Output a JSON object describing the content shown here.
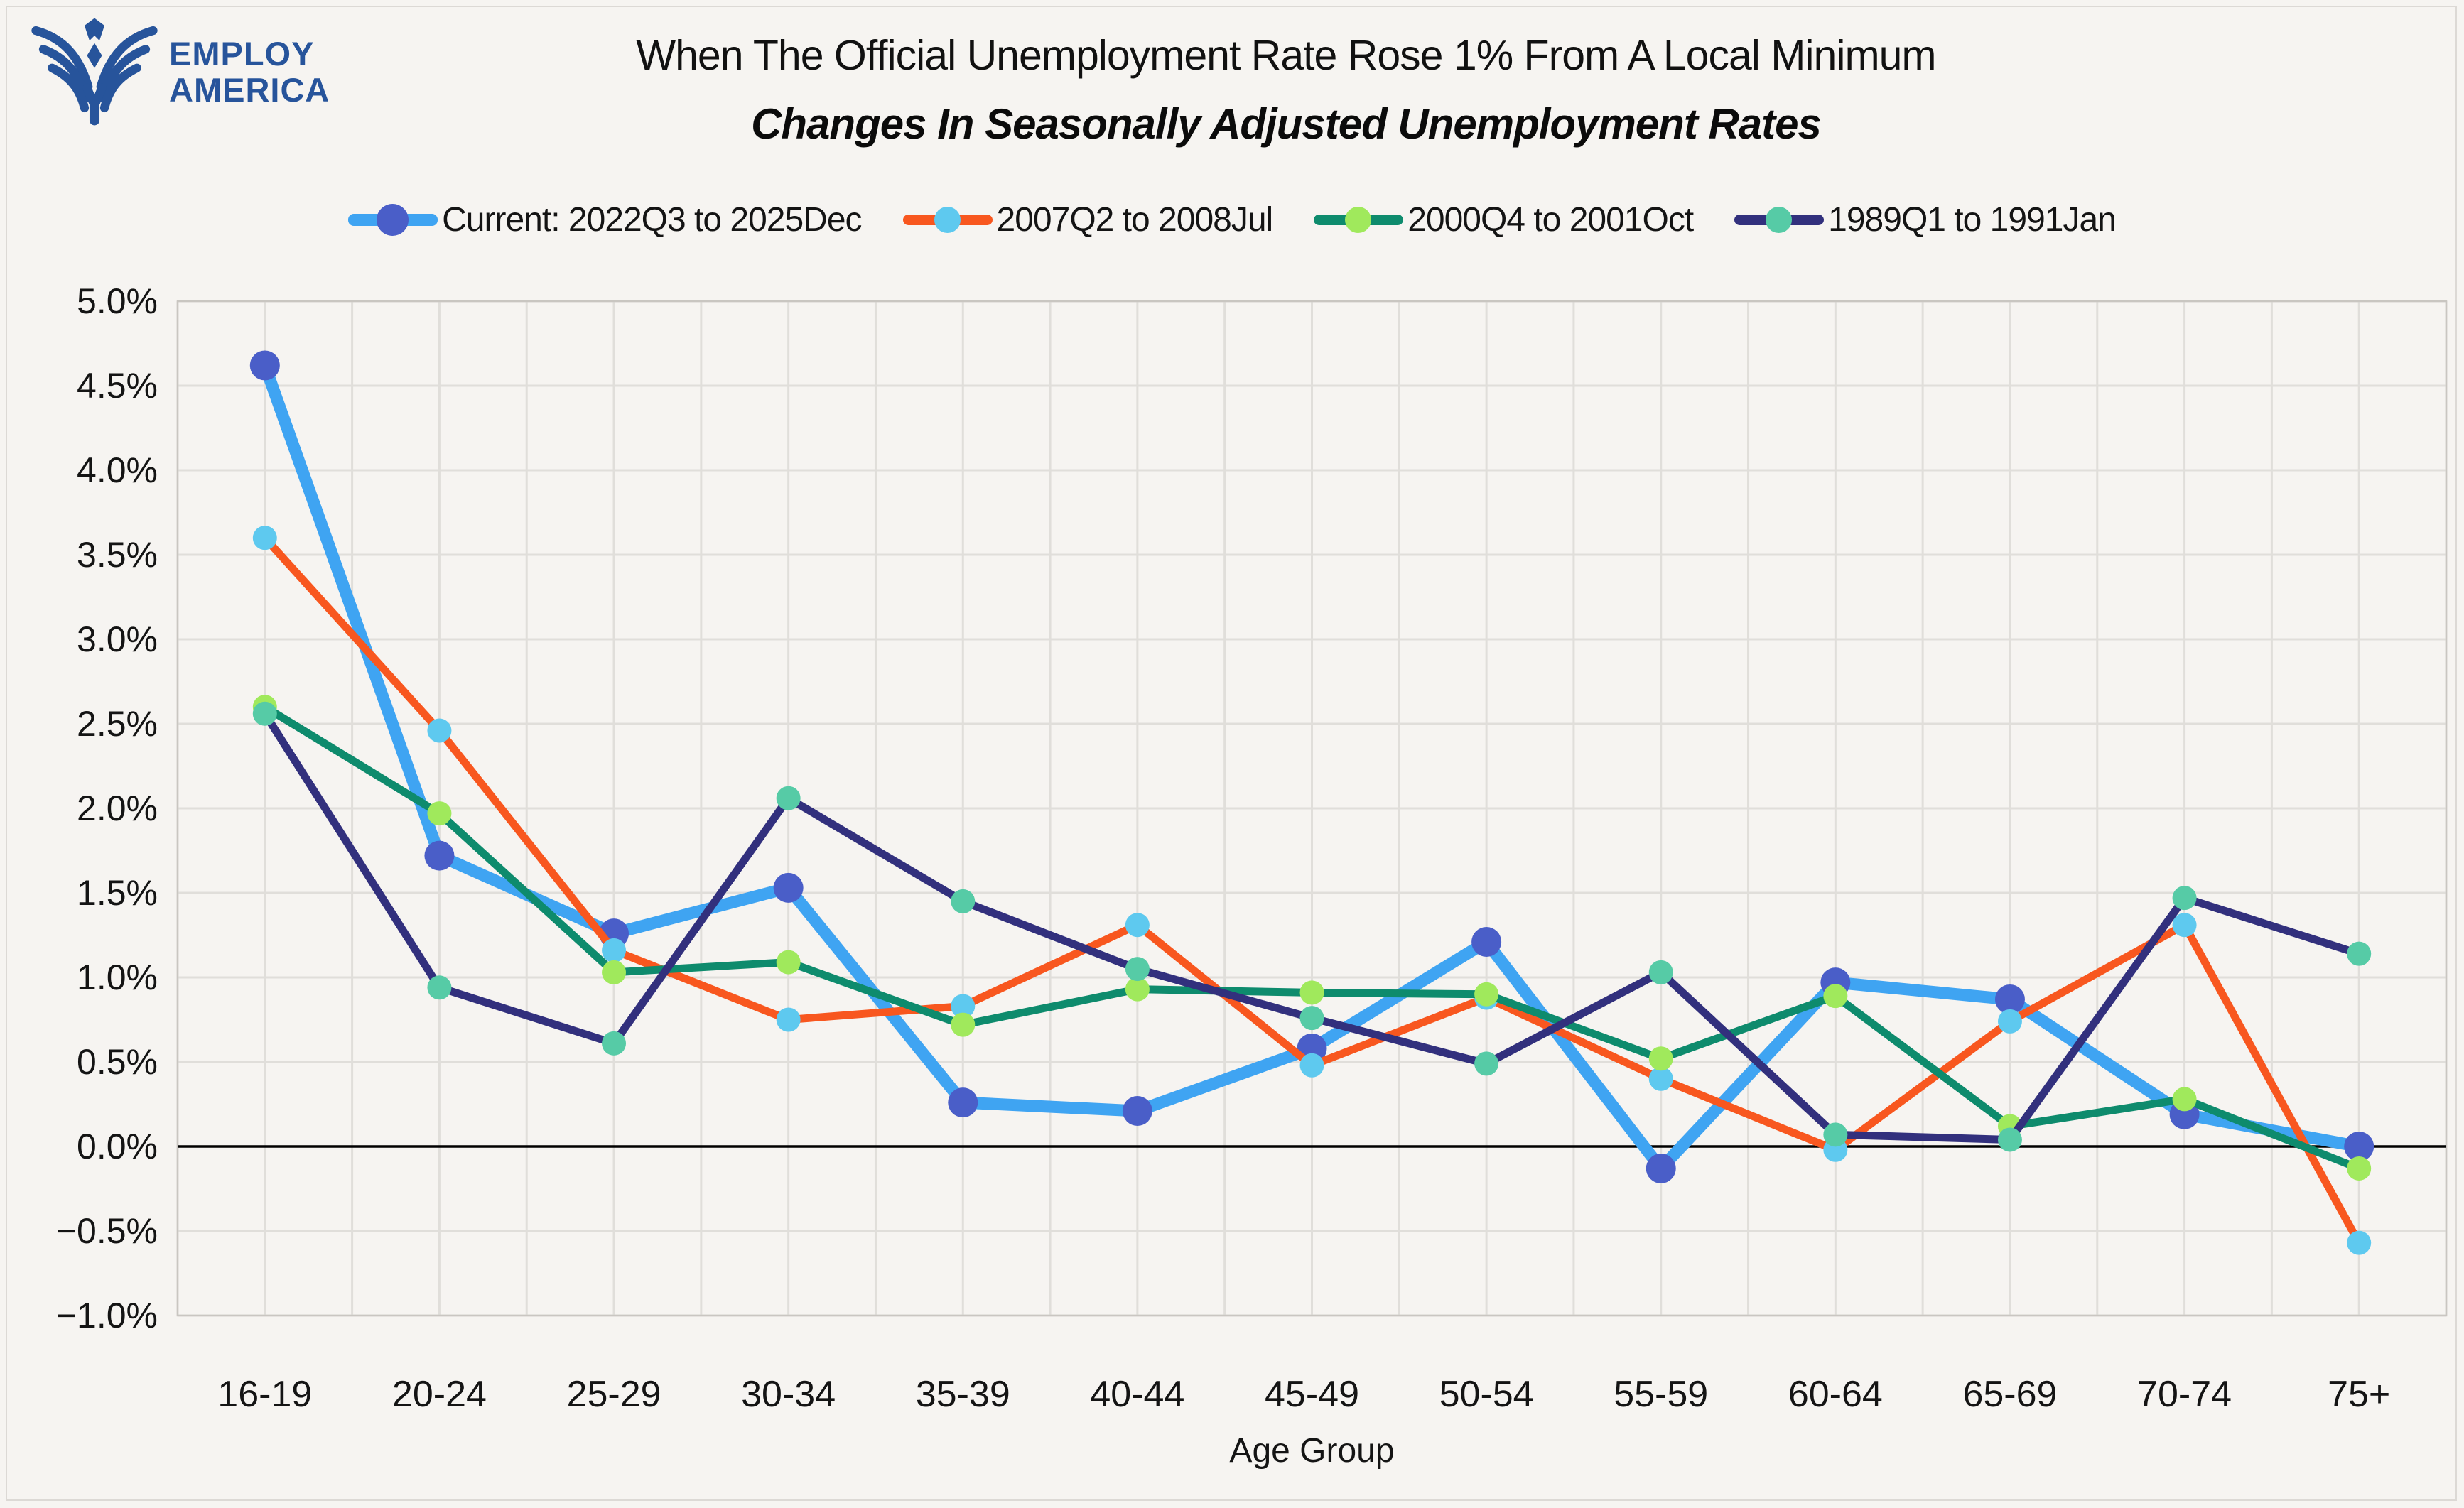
{
  "logo": {
    "line1": "EMPLOY",
    "line2": "AMERICA",
    "brand_color": "#27549B"
  },
  "header": {
    "title": "When The Official Unemployment Rate Rose 1% From A Local Minimum",
    "subtitle": "Changes In Seasonally Adjusted Unemployment Rates"
  },
  "chart_data": {
    "type": "line",
    "title": "When The Official Unemployment Rate Rose 1% From A Local Minimum",
    "subtitle": "Changes In Seasonally Adjusted Unemployment Rates",
    "xlabel": "Age Group",
    "ylabel": "",
    "grid": true,
    "legend_position": "top",
    "ylim": [
      -1.0,
      5.0
    ],
    "ytick_step": 0.5,
    "ytick_labels": [
      "5.0%",
      "4.5%",
      "4.0%",
      "3.5%",
      "3.0%",
      "2.5%",
      "2.0%",
      "1.5%",
      "1.0%",
      "0.5%",
      "0.0%",
      "−0.5%",
      "−1.0%"
    ],
    "categories": [
      "16-19",
      "20-24",
      "25-29",
      "30-34",
      "35-39",
      "40-44",
      "45-49",
      "50-54",
      "55-59",
      "60-64",
      "65-69",
      "70-74",
      "75+"
    ],
    "series": [
      {
        "name": "Current: 2022Q3 to 2025Dec",
        "line_color": "#3FA4F2",
        "marker_color": "#4A5EC8",
        "line_width": 17,
        "marker_radius": 21,
        "values": [
          4.62,
          1.72,
          1.26,
          1.53,
          0.26,
          0.21,
          0.58,
          1.21,
          -0.13,
          0.97,
          0.87,
          0.19,
          0.0
        ]
      },
      {
        "name": "2007Q2 to 2008Jul",
        "line_color": "#F8571F",
        "marker_color": "#5EC9EF",
        "line_width": 11,
        "marker_radius": 17,
        "values": [
          3.6,
          2.46,
          1.16,
          0.75,
          0.83,
          1.31,
          0.48,
          0.88,
          0.4,
          -0.02,
          0.74,
          1.31,
          -0.57
        ]
      },
      {
        "name": "2000Q4 to 2001Oct",
        "line_color": "#0E8B6D",
        "marker_color": "#A0E95C",
        "line_width": 11,
        "marker_radius": 17,
        "values": [
          2.6,
          1.97,
          1.03,
          1.09,
          0.72,
          0.93,
          0.91,
          0.9,
          0.52,
          0.89,
          0.12,
          0.28,
          -0.13
        ]
      },
      {
        "name": "1989Q1 to 1991Jan",
        "line_color": "#32307D",
        "marker_color": "#56CBA6",
        "line_width": 11,
        "marker_radius": 17,
        "values": [
          2.56,
          0.94,
          0.61,
          2.06,
          1.45,
          1.05,
          0.76,
          0.49,
          1.03,
          0.07,
          0.04,
          1.47,
          1.14
        ]
      }
    ],
    "colors": {
      "background": "#F6F4F1",
      "gridline": "#E0DEDA",
      "plot_border": "#C9C6C1",
      "zero_line": "#000000",
      "text": "#141414"
    }
  }
}
